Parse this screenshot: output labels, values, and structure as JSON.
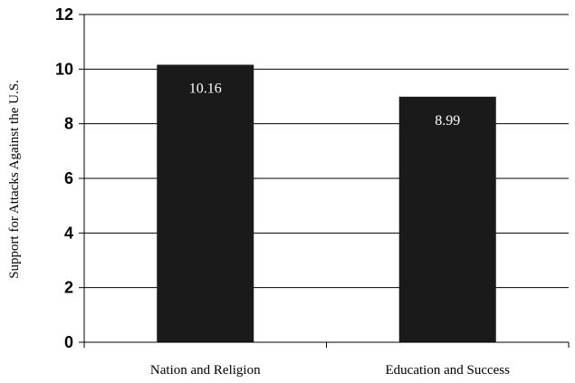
{
  "chart_data": {
    "type": "bar",
    "categories": [
      "Nation and Religion",
      "Education and Success"
    ],
    "values": [
      10.16,
      8.99
    ],
    "data_labels": [
      "10.16",
      "8.99"
    ],
    "title": "",
    "xlabel": "",
    "ylabel": "Support for Attacks Against the U.S.",
    "ylim": [
      0,
      12
    ],
    "yticks": [
      0,
      2,
      4,
      6,
      8,
      10,
      12
    ],
    "grid": true,
    "bar_color": "#1a1a1a",
    "label_color": "#ffffff"
  }
}
